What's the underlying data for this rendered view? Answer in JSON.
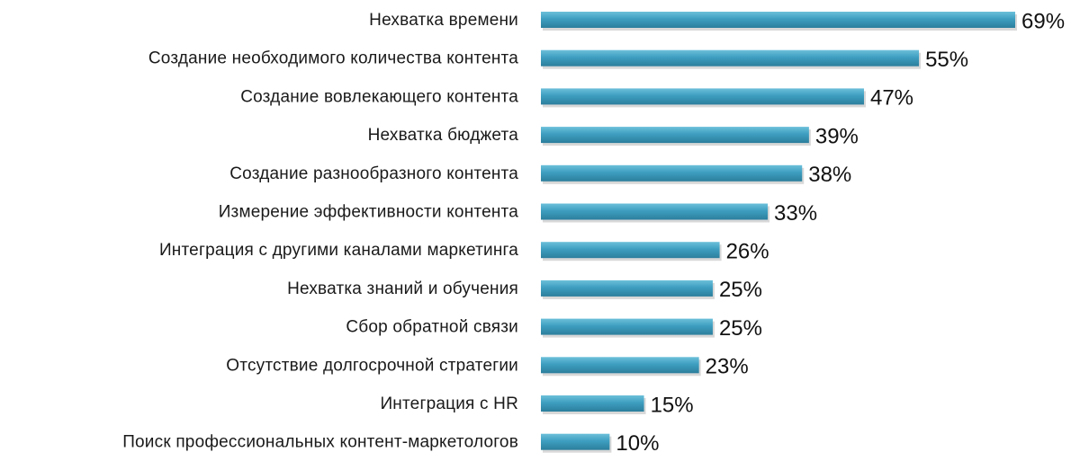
{
  "chart_data": {
    "type": "bar",
    "orientation": "horizontal",
    "categories": [
      "Нехватка времени",
      "Создание необходимого количества контента",
      "Создание вовлекающего контента",
      "Нехватка бюджета",
      "Создание разнообразного контента",
      "Измерение эффективности контента",
      "Интеграция с другими каналами маркетинга",
      "Нехватка знаний и обучения",
      "Сбор обратной связи",
      "Отсутствие долгосрочной стратегии",
      "Интеграция с HR",
      "Поиск профессиональных контент-маркетологов"
    ],
    "values": [
      69,
      55,
      47,
      39,
      38,
      33,
      26,
      25,
      25,
      23,
      15,
      10
    ],
    "value_labels": [
      "69%",
      "55%",
      "47%",
      "39%",
      "38%",
      "33%",
      "26%",
      "25%",
      "25%",
      "23%",
      "15%",
      "10%"
    ],
    "value_unit": "%",
    "xlim": [
      0,
      69
    ],
    "grid": false,
    "legend": "none",
    "colors": {
      "bar_top": "#6cc0da",
      "bar_mid": "#3e9ec0",
      "bar_bottom": "#2c7e9c",
      "shadow": "#b8b8b8"
    }
  }
}
